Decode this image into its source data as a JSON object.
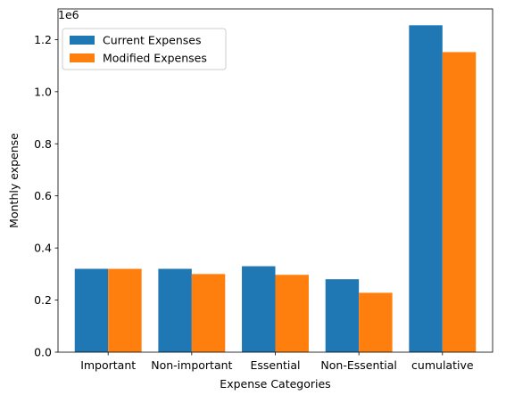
{
  "chart_data": {
    "type": "bar",
    "title": "",
    "xlabel": "Expense Categories",
    "ylabel": "Monthly expense",
    "y_offset_label": "1e6",
    "categories": [
      "Important",
      "Non-important",
      "Essential",
      "Non-Essential",
      "cumulative"
    ],
    "series": [
      {
        "name": "Current Expenses",
        "color": "#1f77b4",
        "values": [
          320000,
          320000,
          330000,
          280000,
          1255000
        ]
      },
      {
        "name": "Modified Expenses",
        "color": "#ff7f0e",
        "values": [
          320000,
          300000,
          297000,
          228000,
          1152000
        ]
      }
    ],
    "ylim": [
      0,
      1317750
    ],
    "yticks": [
      0,
      200000,
      400000,
      600000,
      800000,
      1000000,
      1200000
    ],
    "ytick_labels": [
      "0.0",
      "0.2",
      "0.4",
      "0.6",
      "0.8",
      "1.0",
      "1.2"
    ],
    "legend_position": "top-left",
    "grid": false
  }
}
